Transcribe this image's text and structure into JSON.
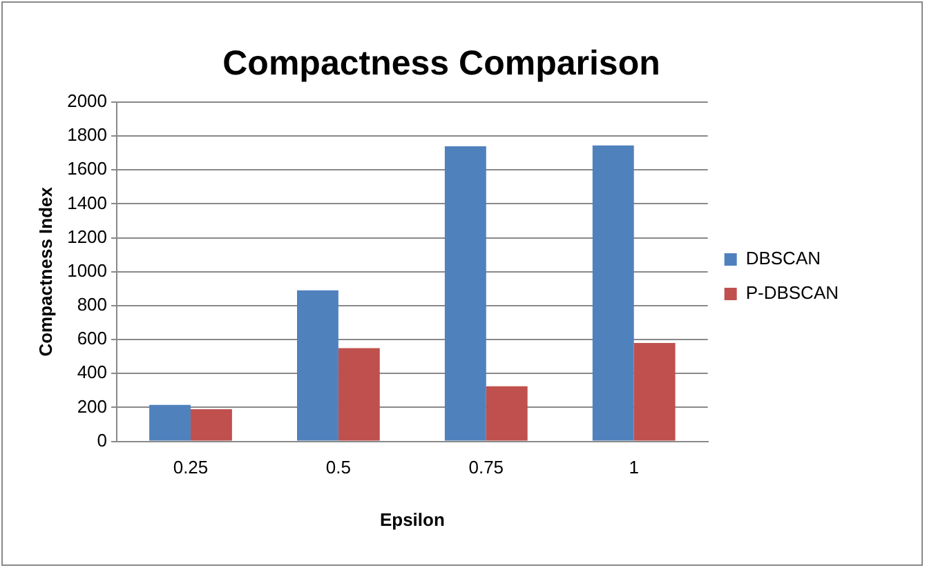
{
  "chart_data": {
    "type": "bar",
    "title": "Compactness Comparison",
    "xlabel": "Epsilon",
    "ylabel": "Compactness Index",
    "categories": [
      "0.25",
      "0.5",
      "0.75",
      "1"
    ],
    "series": [
      {
        "name": "DBSCAN",
        "color": "#4f81bd",
        "values": [
          215,
          890,
          1740,
          1745
        ]
      },
      {
        "name": "P-DBSCAN",
        "color": "#c0504d",
        "values": [
          190,
          550,
          325,
          580
        ]
      }
    ],
    "ylim": [
      0,
      2000
    ],
    "yticks": [
      0,
      200,
      400,
      600,
      800,
      1000,
      1200,
      1400,
      1600,
      1800,
      2000
    ],
    "grid": "y",
    "legend": "right"
  }
}
